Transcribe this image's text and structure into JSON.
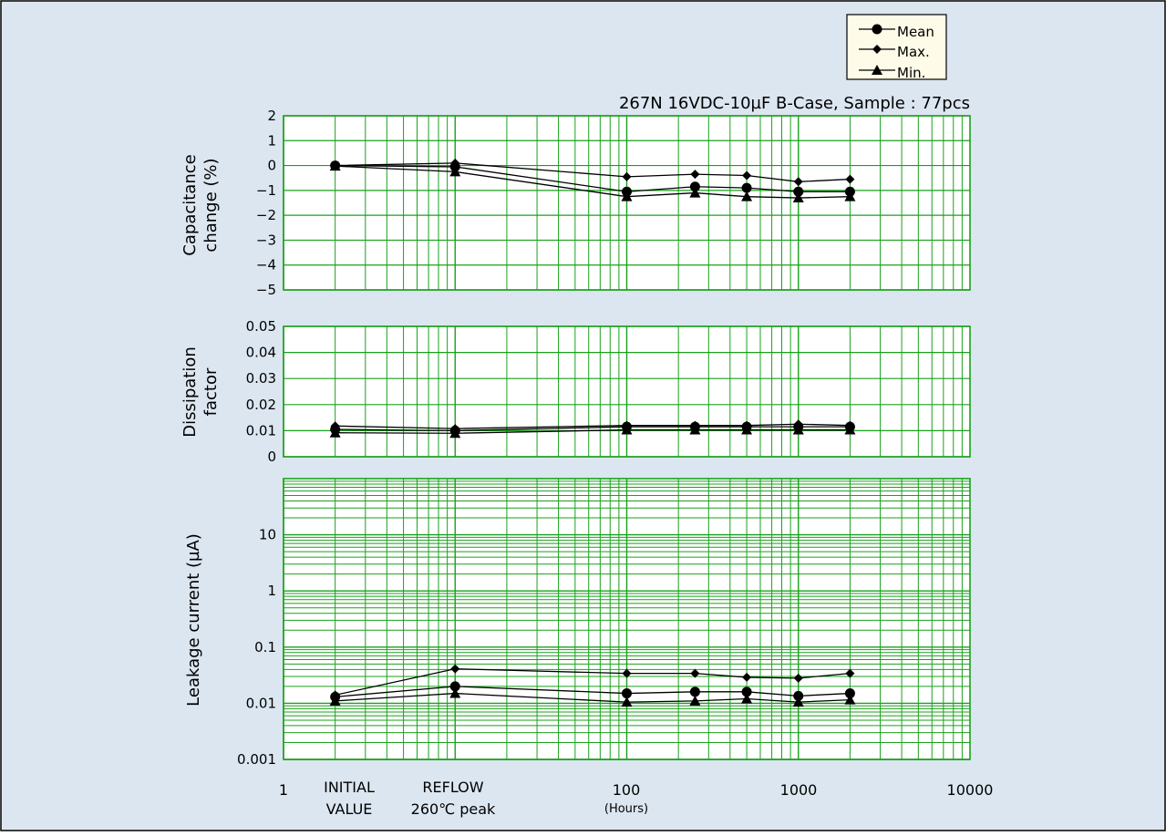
{
  "subtitle": "267N 16VDC-10µF B-Case, Sample : 77pcs",
  "legend": [
    "Mean",
    "Max.",
    "Min."
  ],
  "x_axis": {
    "scale": "log",
    "ticks": [
      "1",
      "100",
      "1000",
      "10000"
    ],
    "category_labels": [
      {
        "line1": "INITIAL",
        "line2": "VALUE"
      },
      {
        "line1": "REFLOW",
        "line2": "260℃ peak"
      }
    ],
    "unit": "(Hours)"
  },
  "chart_data": [
    {
      "type": "line",
      "ylabel": [
        "Capacitance",
        "change (%)"
      ],
      "ylim": [
        -5,
        2
      ],
      "yticks": [
        "2",
        "1",
        "0",
        "−1",
        "−2",
        "−3",
        "−4",
        "−5"
      ],
      "x": [
        "INITIAL VALUE",
        "REFLOW",
        100,
        250,
        500,
        1000,
        2000
      ],
      "series": [
        {
          "name": "Mean",
          "marker": "circle",
          "values": [
            0,
            -0.05,
            -1.05,
            -0.85,
            -0.9,
            -1.05,
            -1.05
          ]
        },
        {
          "name": "Max.",
          "marker": "diamond",
          "values": [
            0,
            0.1,
            -0.45,
            -0.35,
            -0.4,
            -0.65,
            -0.55
          ]
        },
        {
          "name": "Min.",
          "marker": "triangle",
          "values": [
            -0.02,
            -0.25,
            -1.25,
            -1.1,
            -1.25,
            -1.3,
            -1.25
          ]
        }
      ],
      "grid": true
    },
    {
      "type": "line",
      "ylabel": [
        "Dissipation",
        "factor"
      ],
      "ylim": [
        0,
        0.05
      ],
      "yticks": [
        "0.05",
        "0.04",
        "0.03",
        "0.02",
        "0.01",
        "0"
      ],
      "x": [
        "INITIAL VALUE",
        "REFLOW",
        100,
        250,
        500,
        1000,
        2000
      ],
      "series": [
        {
          "name": "Mean",
          "marker": "circle",
          "values": [
            0.0105,
            0.01,
            0.0115,
            0.0115,
            0.0115,
            0.0115,
            0.0115
          ]
        },
        {
          "name": "Max.",
          "marker": "diamond",
          "values": [
            0.0118,
            0.0108,
            0.012,
            0.012,
            0.012,
            0.0125,
            0.012
          ]
        },
        {
          "name": "Min.",
          "marker": "triangle",
          "values": [
            0.0092,
            0.009,
            0.0103,
            0.0103,
            0.0103,
            0.0103,
            0.0103
          ]
        }
      ],
      "grid": true
    },
    {
      "type": "line",
      "ylabel": [
        "Leakage current (µA)"
      ],
      "yscale": "log",
      "ylim": [
        0.001,
        100
      ],
      "yticks": [
        "10",
        "1",
        "0.1",
        "0.01",
        "0.001"
      ],
      "x": [
        "INITIAL VALUE",
        "REFLOW",
        100,
        250,
        500,
        1000,
        2000
      ],
      "series": [
        {
          "name": "Mean",
          "marker": "circle",
          "values": [
            0.013,
            0.02,
            0.015,
            0.016,
            0.016,
            0.0135,
            0.015
          ]
        },
        {
          "name": "Max.",
          "marker": "diamond",
          "values": [
            0.014,
            0.041,
            0.034,
            0.034,
            0.029,
            0.028,
            0.034
          ]
        },
        {
          "name": "Min.",
          "marker": "triangle",
          "values": [
            0.011,
            0.015,
            0.0105,
            0.011,
            0.012,
            0.0105,
            0.0115
          ]
        }
      ],
      "grid": true
    }
  ],
  "colors": {
    "background": "#dce6f1",
    "plot_area": "#ffffff",
    "grid": "#19a11b",
    "series_line": "#000000",
    "legend_box": "#fefbe8"
  }
}
